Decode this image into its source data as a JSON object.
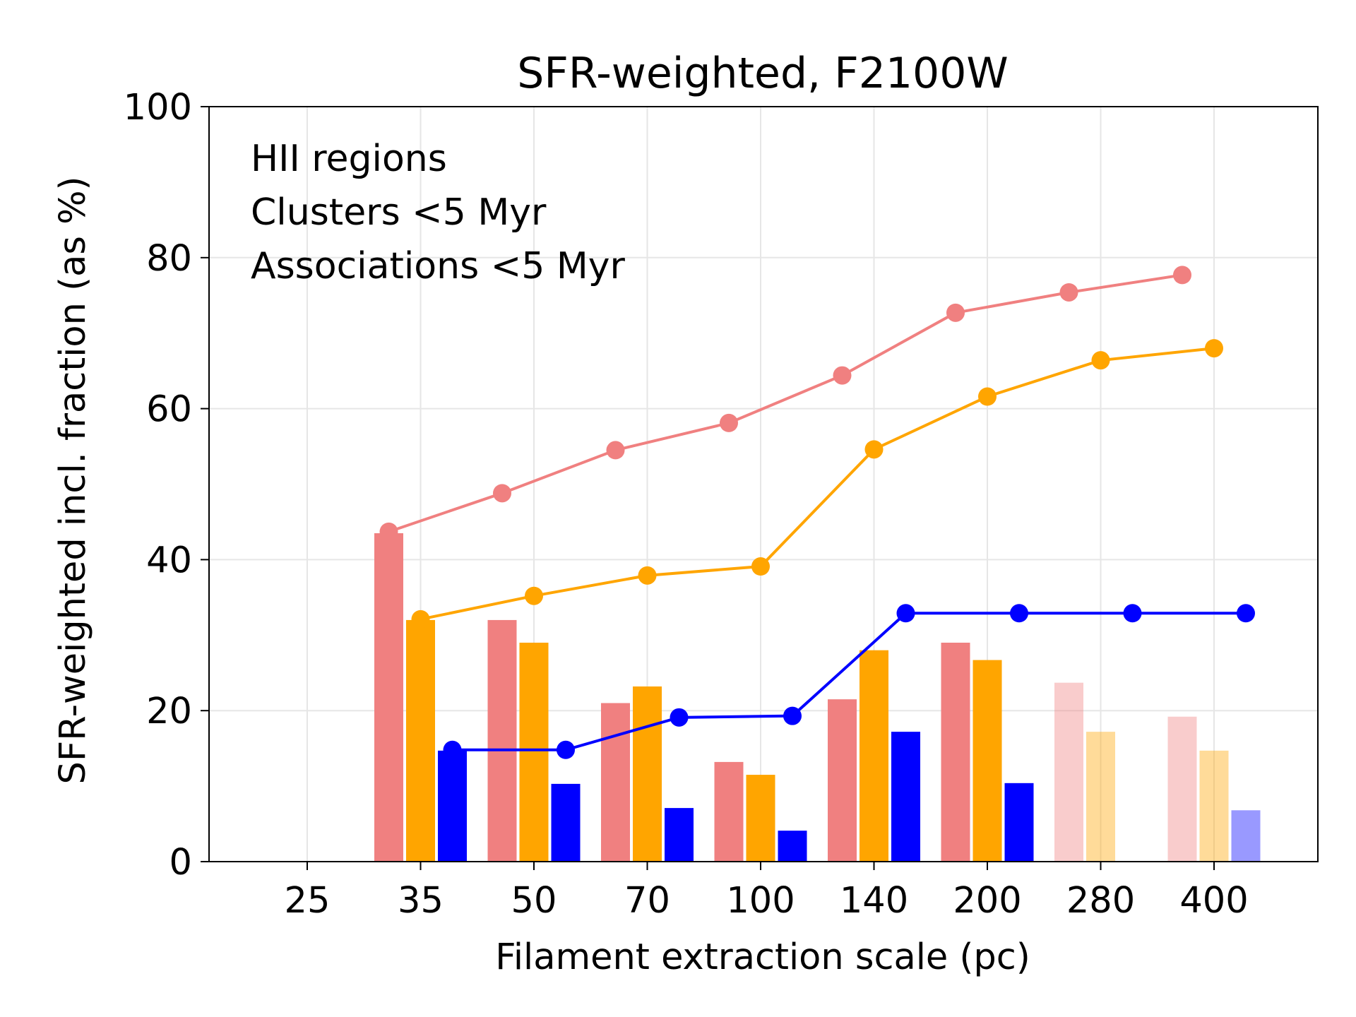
{
  "chart_data": {
    "type": "bar",
    "title": "SFR-weighted, F2100W",
    "xlabel": "Filament extraction scale (pc)",
    "ylabel": "SFR-weighted incl. fraction (as %)",
    "ylim": [
      0,
      100
    ],
    "yticks": [
      0,
      20,
      40,
      60,
      80,
      100
    ],
    "categories": [
      "25",
      "35",
      "50",
      "70",
      "100",
      "140",
      "200",
      "280",
      "400"
    ],
    "grid": true,
    "legend": {
      "placement": "top-left"
    },
    "series": [
      {
        "name": "HII regions",
        "color": "#f08080",
        "bars": [
          null,
          43.5,
          32.0,
          21.0,
          13.2,
          21.5,
          29.0,
          23.7,
          19.2
        ],
        "faded": [
          false,
          false,
          false,
          false,
          false,
          false,
          false,
          true,
          true
        ],
        "line": [
          null,
          43.7,
          48.8,
          54.5,
          58.1,
          64.4,
          72.7,
          75.4,
          77.7
        ]
      },
      {
        "name": "Clusters <5 Myr",
        "color": "#ffa500",
        "bars": [
          null,
          32.0,
          29.0,
          23.2,
          11.5,
          28.0,
          26.7,
          17.2,
          14.7
        ],
        "faded": [
          false,
          false,
          false,
          false,
          false,
          false,
          false,
          true,
          true
        ],
        "line": [
          null,
          32.1,
          35.2,
          37.9,
          39.1,
          54.6,
          61.6,
          66.4,
          68.0
        ]
      },
      {
        "name": "Associations <5 Myr",
        "color": "#0000ff",
        "bars": [
          null,
          14.7,
          10.3,
          7.1,
          4.1,
          17.2,
          10.4,
          null,
          6.8
        ],
        "faded": [
          false,
          false,
          false,
          false,
          false,
          false,
          false,
          true,
          true
        ],
        "line": [
          null,
          14.8,
          14.8,
          19.1,
          19.3,
          32.9,
          32.9,
          32.9,
          32.9
        ]
      }
    ]
  }
}
